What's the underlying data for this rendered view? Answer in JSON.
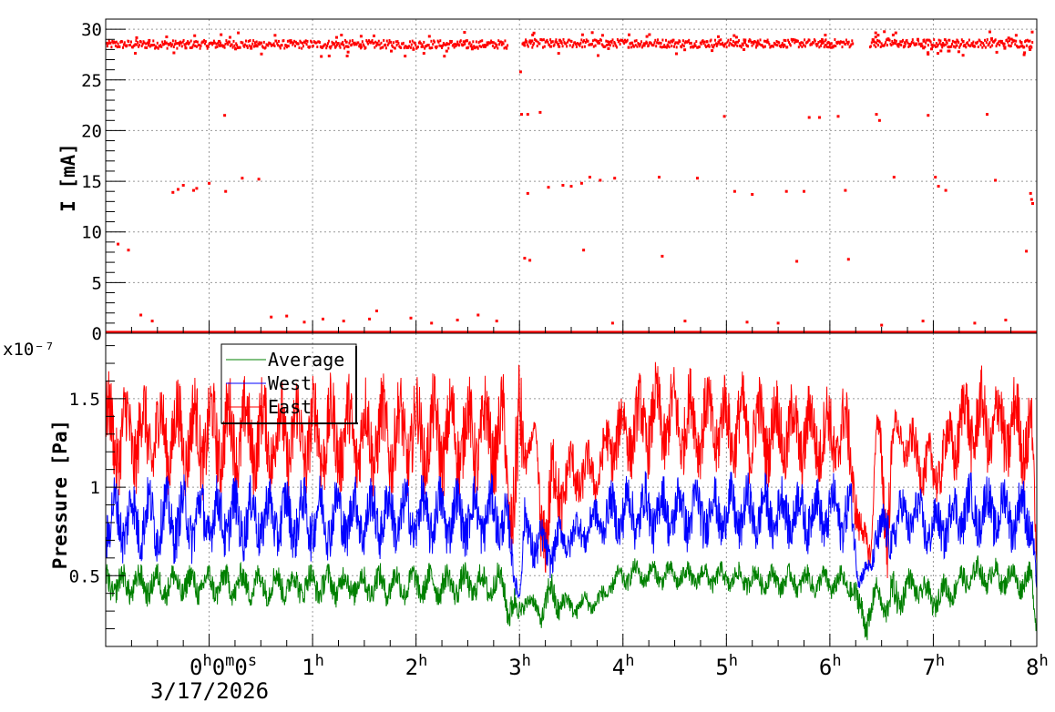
{
  "chart_data": [
    {
      "type": "scatter",
      "name": "beam-current",
      "ylabel": "I [mA]",
      "ylim": [
        0,
        31
      ],
      "yticks": [
        0,
        5,
        10,
        15,
        20,
        25,
        30
      ],
      "xlim": [
        -1.0,
        8.0
      ],
      "x_unit": "hours",
      "grid": true,
      "color": "#ff0000",
      "main_band": {
        "segments": [
          [
            -1.0,
            2.88,
            28.5
          ],
          [
            3.02,
            6.22,
            28.6
          ],
          [
            6.38,
            7.95,
            28.6
          ]
        ],
        "note_segments": "start hour, end hour, current in mA"
      },
      "points": [
        [
          -0.88,
          8.8
        ],
        [
          -0.78,
          8.2
        ],
        [
          -0.66,
          1.8
        ],
        [
          -0.55,
          1.2
        ],
        [
          -0.35,
          13.9
        ],
        [
          -0.3,
          14.2
        ],
        [
          -0.25,
          14.6
        ],
        [
          -0.15,
          14.1
        ],
        [
          -0.12,
          14.3
        ],
        [
          0.0,
          14.8
        ],
        [
          0.15,
          21.5
        ],
        [
          0.16,
          14.0
        ],
        [
          0.32,
          15.3
        ],
        [
          0.48,
          15.2
        ],
        [
          0.6,
          1.6
        ],
        [
          0.75,
          1.7
        ],
        [
          0.92,
          1.1
        ],
        [
          1.1,
          1.4
        ],
        [
          1.3,
          1.2
        ],
        [
          1.55,
          1.4
        ],
        [
          1.62,
          2.2
        ],
        [
          1.95,
          1.5
        ],
        [
          2.15,
          1.0
        ],
        [
          2.4,
          1.3
        ],
        [
          2.6,
          1.8
        ],
        [
          2.78,
          1.2
        ],
        [
          3.01,
          25.8
        ],
        [
          3.02,
          21.6
        ],
        [
          3.08,
          21.6
        ],
        [
          3.05,
          7.4
        ],
        [
          3.1,
          7.2
        ],
        [
          3.08,
          13.8
        ],
        [
          3.2,
          21.8
        ],
        [
          3.28,
          14.4
        ],
        [
          3.42,
          14.6
        ],
        [
          3.5,
          14.5
        ],
        [
          3.6,
          14.8
        ],
        [
          3.68,
          15.4
        ],
        [
          3.78,
          15.1
        ],
        [
          3.62,
          8.2
        ],
        [
          3.92,
          15.3
        ],
        [
          4.35,
          15.4
        ],
        [
          4.38,
          7.6
        ],
        [
          4.72,
          15.3
        ],
        [
          4.98,
          21.4
        ],
        [
          5.08,
          14.0
        ],
        [
          5.25,
          13.7
        ],
        [
          5.58,
          14.0
        ],
        [
          5.68,
          7.1
        ],
        [
          5.75,
          14.0
        ],
        [
          5.8,
          21.3
        ],
        [
          5.9,
          21.3
        ],
        [
          6.08,
          21.4
        ],
        [
          6.15,
          14.1
        ],
        [
          6.18,
          7.3
        ],
        [
          6.45,
          21.6
        ],
        [
          6.48,
          21.0
        ],
        [
          6.62,
          15.4
        ],
        [
          6.95,
          21.5
        ],
        [
          7.02,
          15.4
        ],
        [
          7.05,
          14.5
        ],
        [
          7.12,
          14.1
        ],
        [
          7.52,
          21.6
        ],
        [
          7.6,
          15.1
        ],
        [
          7.94,
          13.8
        ],
        [
          7.95,
          13.2
        ],
        [
          7.96,
          12.8
        ],
        [
          7.9,
          8.1
        ],
        [
          3.9,
          1.0
        ],
        [
          4.6,
          1.2
        ],
        [
          5.2,
          1.1
        ],
        [
          5.5,
          1.0
        ],
        [
          6.5,
          0.8
        ],
        [
          6.9,
          1.2
        ],
        [
          7.4,
          1.0
        ],
        [
          7.7,
          1.3
        ]
      ]
    },
    {
      "type": "line",
      "name": "pressure",
      "ylabel": "Pressure [Pa]",
      "y_multiplier": "x10⁻⁷",
      "ylim": [
        0.1,
        1.87
      ],
      "yticks": [
        0.5,
        1,
        1.5
      ],
      "ytick_labels": [
        "0.5",
        "1",
        "1.5"
      ],
      "xlim": [
        -1.0,
        8.0
      ],
      "grid": true,
      "legend_position": "top-left",
      "series": [
        {
          "name": "Average",
          "color": "#008000",
          "envelope": [
            [
              -1.0,
              0.32,
              0.58
            ],
            [
              2.85,
              0.32,
              0.58
            ],
            [
              2.9,
              0.16,
              0.48
            ],
            [
              3.0,
              0.15,
              0.42
            ],
            [
              3.05,
              0.3,
              0.45
            ],
            [
              3.2,
              0.2,
              0.38
            ],
            [
              3.3,
              0.22,
              0.55
            ],
            [
              3.5,
              0.24,
              0.4
            ],
            [
              3.8,
              0.28,
              0.45
            ],
            [
              3.9,
              0.38,
              0.55
            ],
            [
              4.1,
              0.42,
              0.6
            ],
            [
              6.2,
              0.35,
              0.56
            ],
            [
              6.28,
              0.15,
              0.45
            ],
            [
              6.4,
              0.12,
              0.42
            ],
            [
              6.45,
              0.35,
              0.5
            ],
            [
              6.55,
              0.18,
              0.45
            ],
            [
              6.62,
              0.2,
              0.55
            ],
            [
              6.8,
              0.35,
              0.55
            ],
            [
              7.0,
              0.25,
              0.48
            ],
            [
              7.2,
              0.32,
              0.55
            ],
            [
              7.4,
              0.4,
              0.62
            ],
            [
              7.95,
              0.35,
              0.58
            ],
            [
              8.0,
              0.15,
              0.3
            ]
          ]
        },
        {
          "name": "West",
          "color": "#0000ff",
          "envelope": [
            [
              -1.0,
              0.55,
              1.08
            ],
            [
              2.85,
              0.6,
              1.08
            ],
            [
              2.9,
              0.45,
              0.9
            ],
            [
              3.0,
              0.35,
              0.42
            ],
            [
              3.05,
              0.55,
              0.95
            ],
            [
              3.15,
              0.5,
              0.9
            ],
            [
              3.25,
              0.45,
              0.8
            ],
            [
              3.4,
              0.55,
              0.85
            ],
            [
              3.6,
              0.6,
              0.9
            ],
            [
              3.8,
              0.65,
              1.0
            ],
            [
              4.0,
              0.62,
              1.1
            ],
            [
              6.2,
              0.62,
              1.08
            ],
            [
              6.28,
              0.42,
              0.6
            ],
            [
              6.4,
              0.45,
              0.6
            ],
            [
              6.45,
              0.6,
              1.0
            ],
            [
              6.55,
              0.45,
              0.9
            ],
            [
              6.62,
              0.6,
              1.0
            ],
            [
              6.8,
              0.65,
              1.05
            ],
            [
              7.0,
              0.55,
              0.95
            ],
            [
              7.3,
              0.65,
              1.1
            ],
            [
              7.95,
              0.6,
              1.08
            ],
            [
              8.0,
              0.38,
              0.45
            ]
          ]
        },
        {
          "name": "East",
          "color": "#ff0000",
          "envelope": [
            [
              -1.0,
              0.92,
              1.66
            ],
            [
              2.85,
              0.92,
              1.66
            ],
            [
              2.9,
              0.58,
              1.2
            ],
            [
              3.0,
              0.48,
              1.82
            ],
            [
              3.05,
              1.0,
              1.38
            ],
            [
              3.15,
              1.28,
              1.38
            ],
            [
              3.2,
              0.45,
              1.1
            ],
            [
              3.3,
              0.5,
              1.35
            ],
            [
              3.45,
              0.8,
              1.3
            ],
            [
              3.6,
              0.85,
              1.3
            ],
            [
              3.75,
              0.9,
              1.25
            ],
            [
              3.9,
              1.0,
              1.55
            ],
            [
              4.3,
              1.05,
              1.72
            ],
            [
              6.2,
              0.95,
              1.6
            ],
            [
              6.28,
              0.55,
              0.9
            ],
            [
              6.4,
              0.55,
              0.8
            ],
            [
              6.45,
              1.25,
              1.45
            ],
            [
              6.55,
              0.4,
              1.3
            ],
            [
              6.62,
              1.2,
              1.45
            ],
            [
              6.8,
              1.0,
              1.4
            ],
            [
              7.0,
              0.85,
              1.3
            ],
            [
              7.3,
              1.05,
              1.7
            ],
            [
              7.95,
              0.95,
              1.66
            ],
            [
              8.0,
              0.5,
              0.6
            ]
          ]
        }
      ]
    }
  ],
  "x_axis": {
    "tick_hours": [
      0,
      1,
      2,
      3,
      4,
      5,
      6,
      7,
      8
    ],
    "tick_labels": [
      {
        "base": "",
        "sup": "h"
      },
      {
        "base": "1",
        "sup": "h"
      },
      {
        "base": "2",
        "sup": "h"
      },
      {
        "base": "3",
        "sup": "h"
      },
      {
        "base": "4",
        "sup": "h"
      },
      {
        "base": "5",
        "sup": "h"
      },
      {
        "base": "6",
        "sup": "h"
      },
      {
        "base": "7",
        "sup": "h"
      },
      {
        "base": "8",
        "sup": "h"
      }
    ],
    "origin_label_parts": [
      "0",
      "h",
      "0",
      "m",
      "0",
      "s"
    ],
    "date_label": "3/17/2026"
  },
  "legend": {
    "entries": [
      "Average",
      "West",
      "East"
    ],
    "colors": [
      "#008000",
      "#0000ff",
      "#ff0000"
    ]
  }
}
